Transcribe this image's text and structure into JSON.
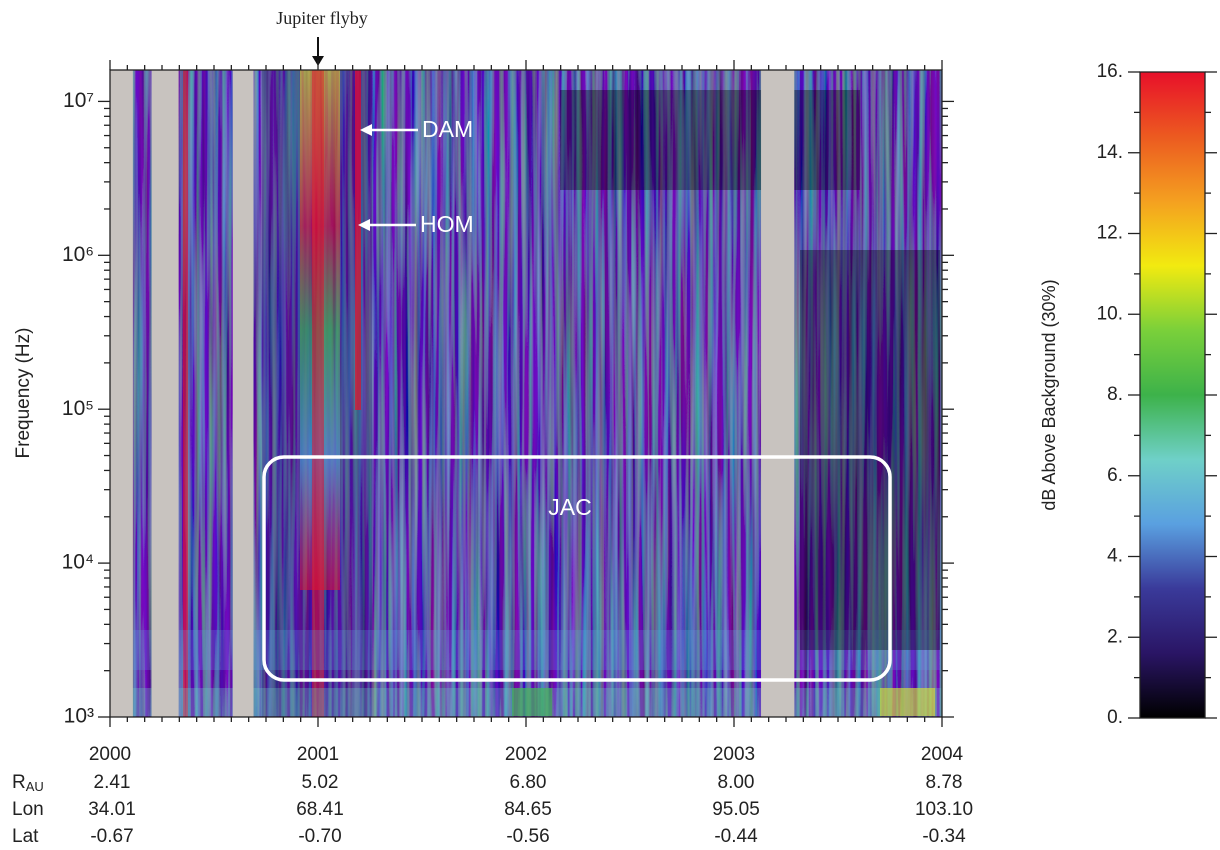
{
  "chart_data": {
    "type": "spectrogram",
    "annotations": {
      "flyby": "Jupiter flyby",
      "dam": "DAM",
      "hom": "HOM",
      "jac": "JAC"
    },
    "y_label": "Frequency (Hz)",
    "xlim": [
      2000,
      2004
    ],
    "xticks": [
      2000,
      2001,
      2002,
      2003,
      2004
    ],
    "ylim": [
      1000,
      16000000
    ],
    "y_log": true,
    "yticks": [
      {
        "value": 1000,
        "label": "10³"
      },
      {
        "value": 10000,
        "label": "10⁴"
      },
      {
        "value": 100000,
        "label": "10⁵"
      },
      {
        "value": 1000000,
        "label": "10⁶"
      },
      {
        "value": 10000000,
        "label": "10⁷"
      }
    ],
    "data_gaps": [
      [
        2000,
        2000.11
      ],
      [
        2000.2,
        2000.33
      ],
      [
        2000.59,
        2000.69
      ],
      [
        2003.13,
        2003.29
      ]
    ],
    "gap_color": "#c8c3bf",
    "colorbar": {
      "label": "dB Above Background (30%)",
      "lim": [
        0,
        16
      ],
      "ticks": [
        {
          "value": 0,
          "label": "0."
        },
        {
          "value": 2,
          "label": "2."
        },
        {
          "value": 4,
          "label": "4."
        },
        {
          "value": 6,
          "label": "6."
        },
        {
          "value": 8,
          "label": "8."
        },
        {
          "value": 10,
          "label": "10."
        },
        {
          "value": 12,
          "label": "12."
        },
        {
          "value": 14,
          "label": "14."
        },
        {
          "value": 16,
          "label": "16."
        }
      ],
      "colors": [
        "#000000",
        "#2a1565",
        "#3a3a9a",
        "#5aa0e0",
        "#6fd0c8",
        "#3db24a",
        "#7ad03a",
        "#f2ea10",
        "#f4a020",
        "#ec5a20",
        "#e8102a"
      ]
    },
    "ephemeris": [
      {
        "name": "R",
        "sub": "AU",
        "values": [
          "2.41",
          "5.02",
          "6.80",
          "8.00",
          "8.78"
        ]
      },
      {
        "name": "Lon",
        "values": [
          "34.01",
          "68.41",
          "84.65",
          "95.05",
          "103.10"
        ]
      },
      {
        "name": "Lat",
        "values": [
          "-0.67",
          "-0.70",
          "-0.56",
          "-0.44",
          "-0.34"
        ]
      }
    ]
  }
}
